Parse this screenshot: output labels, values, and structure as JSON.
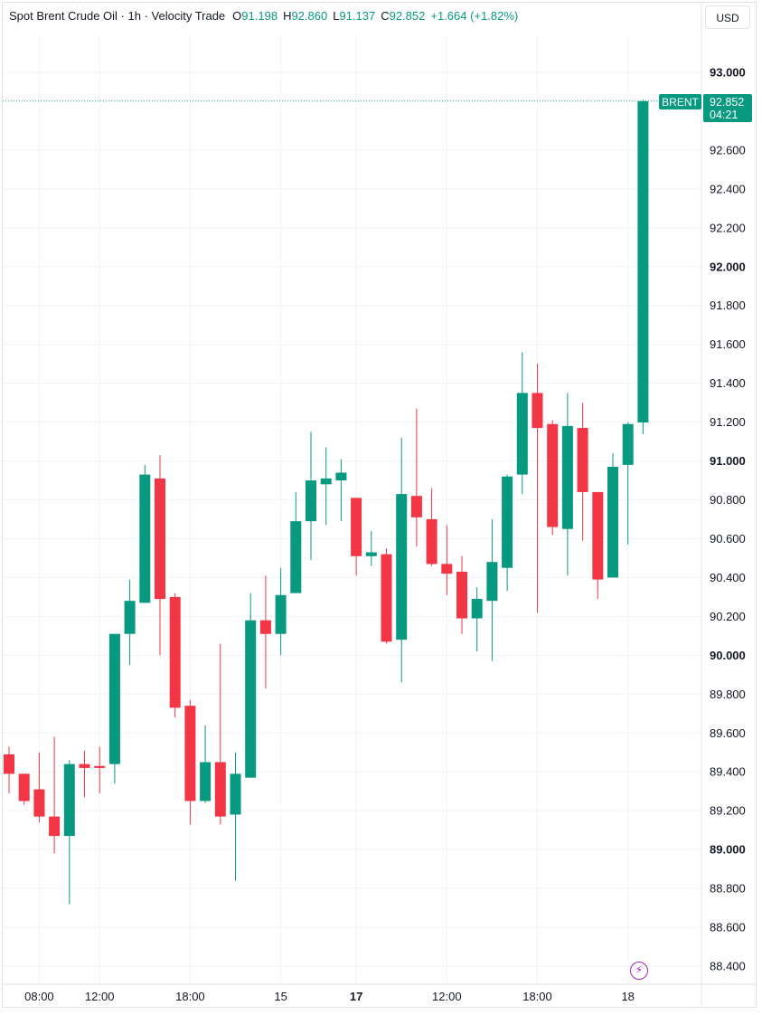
{
  "legend": {
    "title": "Spot Brent Crude Oil · 1h · Velocity Trade",
    "open_label": "O",
    "open": "91.198",
    "high_label": "H",
    "high": "92.860",
    "low_label": "L",
    "low": "91.137",
    "close_label": "C",
    "close": "92.852",
    "change": "+1.664 (+1.82%)"
  },
  "currency": "USD",
  "price_tag": {
    "symbol": "BRENT",
    "price": "92.852",
    "countdown": "04:21"
  },
  "colors": {
    "up": "#089981",
    "down": "#f23645",
    "grid": "#f0f3fa",
    "text": "#131722",
    "accent": "#9c27b0"
  },
  "chart_data": {
    "type": "candlestick",
    "ylim": [
      88.3,
      93.15
    ],
    "y_ticks": [
      {
        "value": 93.0,
        "label": "93.000",
        "bold": true
      },
      {
        "value": 92.6,
        "label": "92.600",
        "bold": false
      },
      {
        "value": 92.4,
        "label": "92.400",
        "bold": false
      },
      {
        "value": 92.2,
        "label": "92.200",
        "bold": false
      },
      {
        "value": 92.0,
        "label": "92.000",
        "bold": true
      },
      {
        "value": 91.8,
        "label": "91.800",
        "bold": false
      },
      {
        "value": 91.6,
        "label": "91.600",
        "bold": false
      },
      {
        "value": 91.4,
        "label": "91.400",
        "bold": false
      },
      {
        "value": 91.2,
        "label": "91.200",
        "bold": false
      },
      {
        "value": 91.0,
        "label": "91.000",
        "bold": true
      },
      {
        "value": 90.8,
        "label": "90.800",
        "bold": false
      },
      {
        "value": 90.6,
        "label": "90.600",
        "bold": false
      },
      {
        "value": 90.4,
        "label": "90.400",
        "bold": false
      },
      {
        "value": 90.2,
        "label": "90.200",
        "bold": false
      },
      {
        "value": 90.0,
        "label": "90.000",
        "bold": true
      },
      {
        "value": 89.8,
        "label": "89.800",
        "bold": false
      },
      {
        "value": 89.6,
        "label": "89.600",
        "bold": false
      },
      {
        "value": 89.4,
        "label": "89.400",
        "bold": false
      },
      {
        "value": 89.2,
        "label": "89.200",
        "bold": false
      },
      {
        "value": 89.0,
        "label": "89.000",
        "bold": true
      },
      {
        "value": 88.8,
        "label": "88.800",
        "bold": false
      },
      {
        "value": 88.6,
        "label": "88.600",
        "bold": false
      },
      {
        "value": 88.4,
        "label": "88.400",
        "bold": false
      }
    ],
    "x_ticks": [
      {
        "index": 2,
        "label": "08:00",
        "bold": false
      },
      {
        "index": 6,
        "label": "12:00",
        "bold": false
      },
      {
        "index": 12,
        "label": "18:00",
        "bold": false
      },
      {
        "index": 18,
        "label": "15",
        "bold": false
      },
      {
        "index": 23,
        "label": "17",
        "bold": true
      },
      {
        "index": 29,
        "label": "12:00",
        "bold": false
      },
      {
        "index": 35,
        "label": "18:00",
        "bold": false
      },
      {
        "index": 41,
        "label": "18",
        "bold": false
      }
    ],
    "candles": [
      {
        "o": 89.49,
        "h": 89.53,
        "l": 89.29,
        "c": 89.39
      },
      {
        "o": 89.39,
        "h": 89.39,
        "l": 89.23,
        "c": 89.25
      },
      {
        "o": 89.31,
        "h": 89.5,
        "l": 89.14,
        "c": 89.17
      },
      {
        "o": 89.17,
        "h": 89.58,
        "l": 88.98,
        "c": 89.07
      },
      {
        "o": 89.07,
        "h": 89.46,
        "l": 88.72,
        "c": 89.44
      },
      {
        "o": 89.44,
        "h": 89.51,
        "l": 89.27,
        "c": 89.42
      },
      {
        "o": 89.43,
        "h": 89.53,
        "l": 89.29,
        "c": 89.42
      },
      {
        "o": 89.44,
        "h": 90.11,
        "l": 89.34,
        "c": 90.11
      },
      {
        "o": 90.11,
        "h": 90.39,
        "l": 89.95,
        "c": 90.28
      },
      {
        "o": 90.27,
        "h": 90.98,
        "l": 90.27,
        "c": 90.93
      },
      {
        "o": 90.91,
        "h": 91.03,
        "l": 90.0,
        "c": 90.29
      },
      {
        "o": 90.3,
        "h": 90.32,
        "l": 89.68,
        "c": 89.73
      },
      {
        "o": 89.74,
        "h": 89.77,
        "l": 89.13,
        "c": 89.25
      },
      {
        "o": 89.25,
        "h": 89.64,
        "l": 89.24,
        "c": 89.45
      },
      {
        "o": 89.45,
        "h": 90.06,
        "l": 89.13,
        "c": 89.17
      },
      {
        "o": 89.18,
        "h": 89.5,
        "l": 88.84,
        "c": 89.39
      },
      {
        "o": 89.37,
        "h": 90.32,
        "l": 89.37,
        "c": 90.18
      },
      {
        "o": 90.18,
        "h": 90.41,
        "l": 89.83,
        "c": 90.11
      },
      {
        "o": 90.11,
        "h": 90.45,
        "l": 90.0,
        "c": 90.31
      },
      {
        "o": 90.32,
        "h": 90.84,
        "l": 90.32,
        "c": 90.69
      },
      {
        "o": 90.69,
        "h": 91.15,
        "l": 90.49,
        "c": 90.9
      },
      {
        "o": 90.88,
        "h": 91.07,
        "l": 90.67,
        "c": 90.91
      },
      {
        "o": 90.9,
        "h": 91.01,
        "l": 90.69,
        "c": 90.94
      },
      {
        "o": 90.81,
        "h": 90.81,
        "l": 90.41,
        "c": 90.51
      },
      {
        "o": 90.51,
        "h": 90.64,
        "l": 90.46,
        "c": 90.53
      },
      {
        "o": 90.52,
        "h": 90.55,
        "l": 90.06,
        "c": 90.07
      },
      {
        "o": 90.08,
        "h": 91.12,
        "l": 89.86,
        "c": 90.83
      },
      {
        "o": 90.82,
        "h": 91.27,
        "l": 90.56,
        "c": 90.71
      },
      {
        "o": 90.7,
        "h": 90.86,
        "l": 90.46,
        "c": 90.47
      },
      {
        "o": 90.47,
        "h": 90.67,
        "l": 90.31,
        "c": 90.42
      },
      {
        "o": 90.43,
        "h": 90.51,
        "l": 90.11,
        "c": 90.19
      },
      {
        "o": 90.19,
        "h": 90.35,
        "l": 90.02,
        "c": 90.29
      },
      {
        "o": 90.28,
        "h": 90.7,
        "l": 89.97,
        "c": 90.48
      },
      {
        "o": 90.45,
        "h": 90.93,
        "l": 90.33,
        "c": 90.92
      },
      {
        "o": 90.93,
        "h": 91.56,
        "l": 90.83,
        "c": 91.35
      },
      {
        "o": 91.35,
        "h": 91.5,
        "l": 90.22,
        "c": 91.17
      },
      {
        "o": 91.19,
        "h": 91.21,
        "l": 90.62,
        "c": 90.66
      },
      {
        "o": 90.65,
        "h": 91.35,
        "l": 90.41,
        "c": 91.18
      },
      {
        "o": 91.17,
        "h": 91.3,
        "l": 90.59,
        "c": 90.84
      },
      {
        "o": 90.84,
        "h": 90.83,
        "l": 90.29,
        "c": 90.39
      },
      {
        "o": 90.4,
        "h": 91.04,
        "l": 90.4,
        "c": 90.97
      },
      {
        "o": 90.98,
        "h": 91.2,
        "l": 90.57,
        "c": 91.19
      },
      {
        "o": 91.198,
        "h": 92.86,
        "l": 91.137,
        "c": 92.852
      }
    ]
  }
}
